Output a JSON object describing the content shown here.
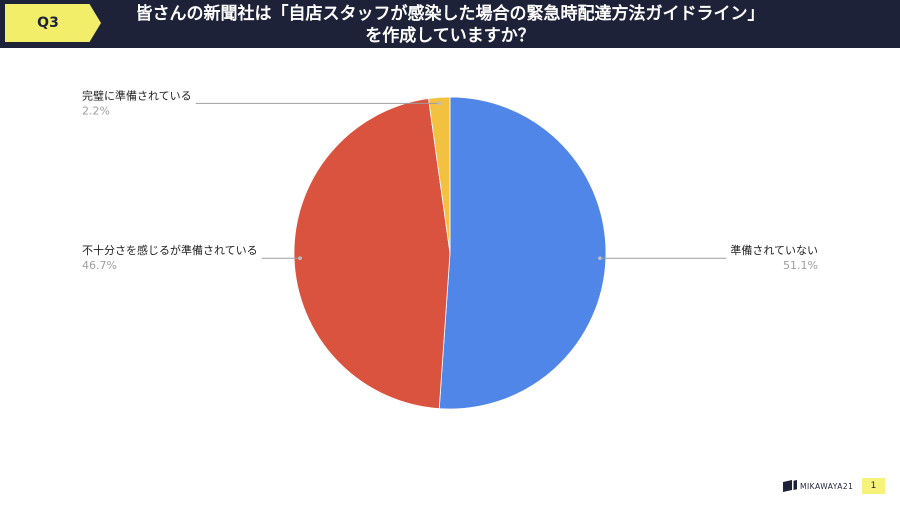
{
  "header": {
    "badge": "Q3",
    "title_lines": [
      "皆さんの新聞社は「自店スタッフが感染した場合の緊急時配達方法ガイドライン」",
      "を作成していますか？"
    ]
  },
  "colors": {
    "header_background": "#1d2238",
    "badge_background": "#f3ee6a",
    "page_number_background": "#f6f27a",
    "label_text": "#222222",
    "value_text": "#9e9e9e",
    "leader_line": "#9e9e9e"
  },
  "chart_data": {
    "type": "pie",
    "slices": [
      {
        "label": "準備されていない",
        "value": 51.1,
        "value_label": "51.1%",
        "color": "#4f86e8"
      },
      {
        "label": "不十分さを感じるが準備されている",
        "value": 46.7,
        "value_label": "46.7%",
        "color": "#d9533f"
      },
      {
        "label": "完璧に準備されている",
        "value": 2.2,
        "value_label": "2.2%",
        "color": "#f2c140"
      }
    ]
  },
  "footer": {
    "logo_text": "MIKAWAYA21",
    "page_number": "1"
  }
}
